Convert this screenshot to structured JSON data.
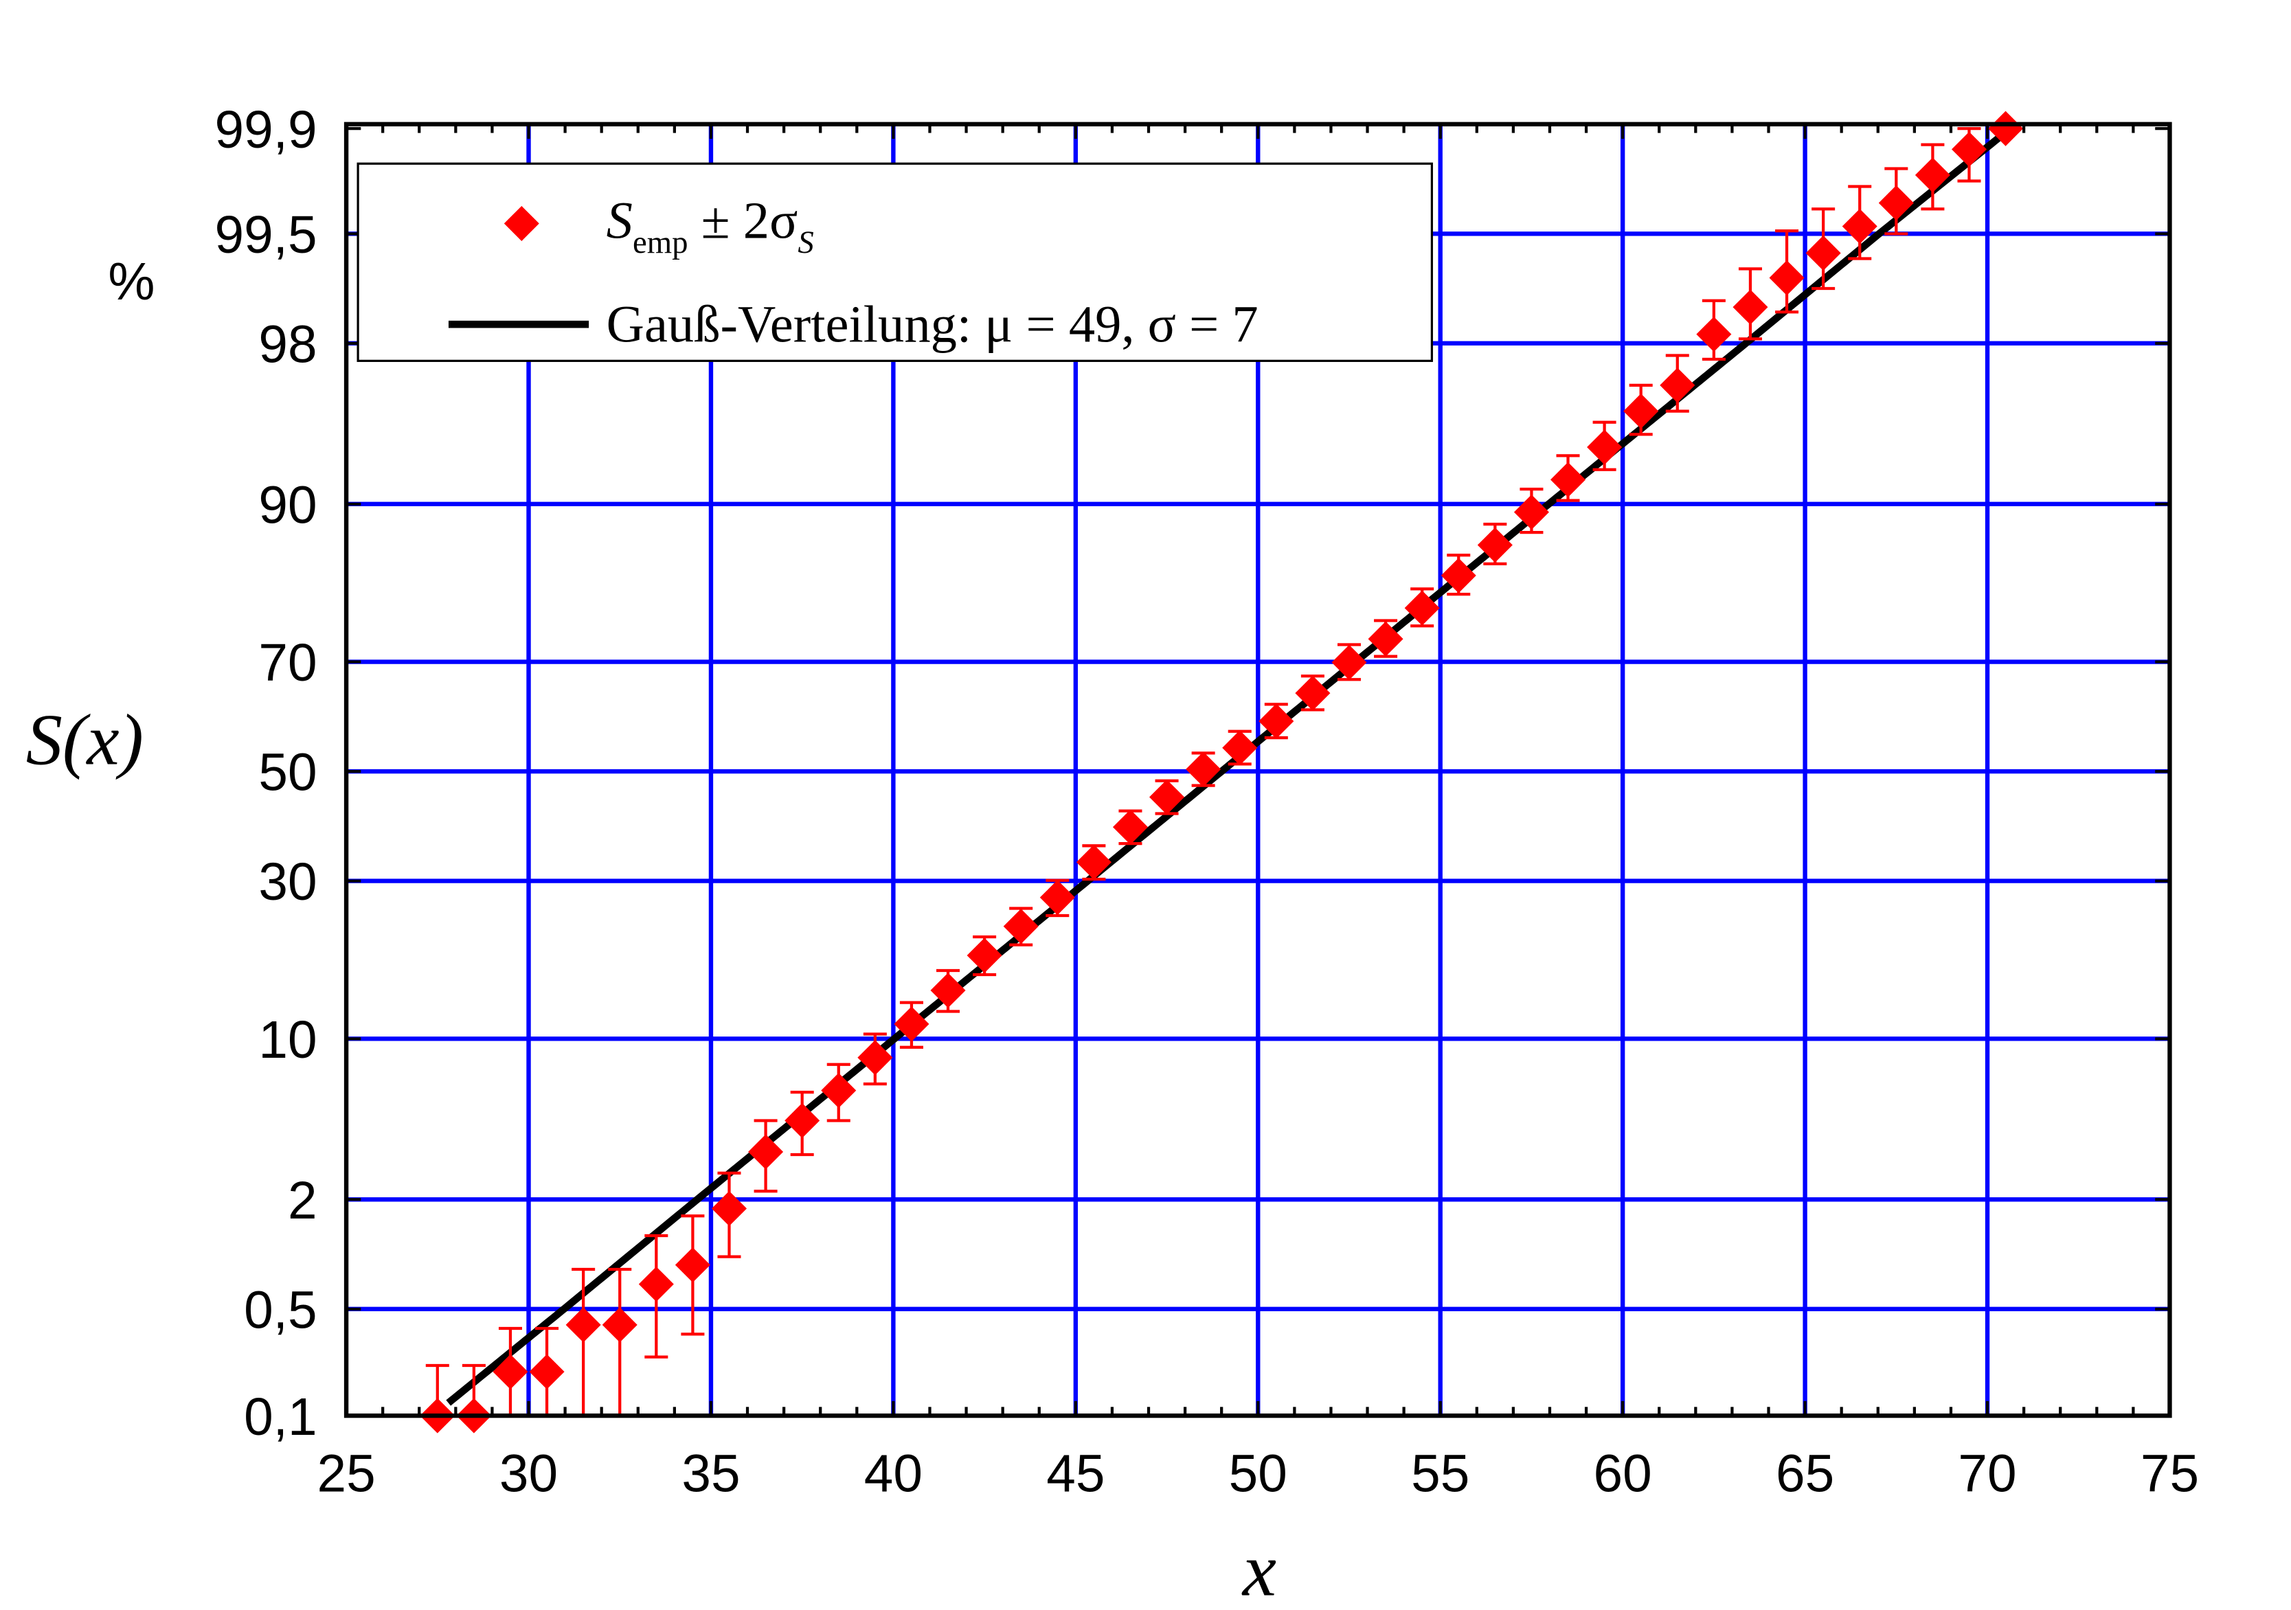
{
  "chart_data": {
    "type": "scatter",
    "y_scale": "probability",
    "xlabel": "x",
    "ylabel": "S(x)",
    "y_unit": "%",
    "xlim": [
      25,
      75
    ],
    "x_ticks": [
      "25",
      "30",
      "35",
      "40",
      "45",
      "50",
      "55",
      "60",
      "65",
      "70",
      "75"
    ],
    "y_ticks": [
      {
        "value": 99.9,
        "label": "99,9"
      },
      {
        "value": 99.5,
        "label": "99,5"
      },
      {
        "value": 98,
        "label": "98"
      },
      {
        "value": 90,
        "label": "90"
      },
      {
        "value": 70,
        "label": "70"
      },
      {
        "value": 50,
        "label": "50"
      },
      {
        "value": 30,
        "label": "30"
      },
      {
        "value": 10,
        "label": "10"
      },
      {
        "value": 2,
        "label": "2"
      },
      {
        "value": 0.5,
        "label": "0,5"
      },
      {
        "value": 0.1,
        "label": "0,1"
      }
    ],
    "grid": true,
    "legend_position": "top-left",
    "series": [
      {
        "name": "S_emp ± 2σ_S",
        "kind": "points-with-error-bars",
        "marker": "diamond",
        "color": "#ff0000",
        "x": [
          27.5,
          28.5,
          29.5,
          30.5,
          31.5,
          32.5,
          33.5,
          34.5,
          35.5,
          36.5,
          37.5,
          38.5,
          39.5,
          40.5,
          41.5,
          42.5,
          43.5,
          44.5,
          45.5,
          46.5,
          47.5,
          48.5,
          49.5,
          50.5,
          51.5,
          52.5,
          53.5,
          54.5,
          55.5,
          56.5,
          57.5,
          58.5,
          59.5,
          60.5,
          61.5,
          62.5,
          63.5,
          64.5,
          65.5,
          66.5,
          67.5,
          68.5,
          69.5,
          70.5
        ],
        "y": [
          0.1,
          0.1,
          0.2,
          0.2,
          0.4,
          0.4,
          0.7,
          0.9,
          1.8,
          3.4,
          4.7,
          6.3,
          8.5,
          11.3,
          14.7,
          18.9,
          22.9,
          27.3,
          33.2,
          39.5,
          45.1,
          50.4,
          54.5,
          59.5,
          64.6,
          69.9,
          73.7,
          78.3,
          82.6,
          86.1,
          89.3,
          91.9,
          94.0,
          95.8,
          96.8,
          98.2,
          98.7,
          99.1,
          99.35,
          99.55,
          99.68,
          99.79,
          99.86,
          99.9
        ],
        "err_low": [
          0.07,
          0.07,
          0.13,
          0.13,
          0.3,
          0.3,
          0.45,
          0.55,
          0.8,
          1.2,
          1.4,
          1.6,
          1.8,
          2.0,
          2.2,
          2.4,
          2.6,
          2.8,
          2.9,
          3.0,
          3.1,
          3.1,
          3.1,
          3.1,
          3.0,
          2.9,
          2.8,
          2.6,
          2.4,
          2.1,
          1.9,
          1.6,
          1.4,
          1.1,
          1.0,
          0.6,
          0.6,
          0.48,
          0.38,
          0.25,
          0.18,
          0.14,
          0.09,
          0.0
        ],
        "err_high": [
          0.12,
          0.12,
          0.18,
          0.18,
          0.45,
          0.45,
          0.6,
          0.75,
          0.9,
          1.3,
          1.5,
          1.7,
          1.9,
          2.1,
          2.3,
          2.5,
          2.7,
          2.8,
          2.9,
          3.0,
          3.1,
          3.1,
          3.1,
          3.1,
          3.0,
          2.9,
          2.8,
          2.6,
          2.4,
          2.1,
          1.9,
          1.6,
          1.3,
          1.0,
          0.9,
          0.6,
          0.5,
          0.42,
          0.3,
          0.2,
          0.13,
          0.08,
          0.05,
          0.0
        ]
      },
      {
        "name": "Gauß-Verteilung: μ = 49, σ = 7",
        "kind": "line",
        "color": "#000000",
        "mu": 49,
        "sigma": 7,
        "x_range": [
          27.8,
          70.7
        ]
      }
    ],
    "legend": [
      {
        "label_main": "S",
        "label_sub": "emp",
        "label_rest": " ± 2σ",
        "label_sub2": "S"
      },
      {
        "label": "Gauß-Verteilung: μ = 49, σ = 7"
      }
    ]
  },
  "colors": {
    "grid": "#0000ff",
    "points": "#ff0000",
    "line": "#000000",
    "axes": "#000000"
  }
}
